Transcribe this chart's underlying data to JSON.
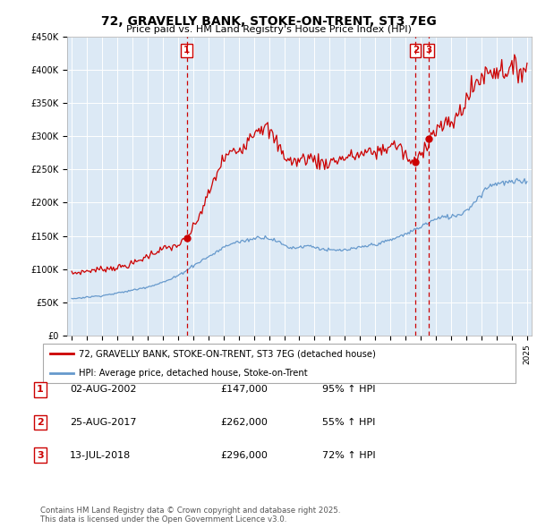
{
  "title": "72, GRAVELLY BANK, STOKE-ON-TRENT, ST3 7EG",
  "subtitle": "Price paid vs. HM Land Registry's House Price Index (HPI)",
  "legend_line1": "72, GRAVELLY BANK, STOKE-ON-TRENT, ST3 7EG (detached house)",
  "legend_line2": "HPI: Average price, detached house, Stoke-on-Trent",
  "sale1_date": "02-AUG-2002",
  "sale1_price": 147000,
  "sale1_hpi": "95% ↑ HPI",
  "sale1_year": 2002.58,
  "sale2_date": "25-AUG-2017",
  "sale2_price": 262000,
  "sale2_hpi": "55% ↑ HPI",
  "sale2_year": 2017.65,
  "sale3_date": "13-JUL-2018",
  "sale3_price": 296000,
  "sale3_hpi": "72% ↑ HPI",
  "sale3_year": 2018.53,
  "background_color": "#dce9f5",
  "red_color": "#cc0000",
  "blue_color": "#6699cc",
  "copyright": "Contains HM Land Registry data © Crown copyright and database right 2025.\nThis data is licensed under the Open Government Licence v3.0.",
  "ylim_max": 450000,
  "xlim_min": 1994.7,
  "xlim_max": 2025.3
}
